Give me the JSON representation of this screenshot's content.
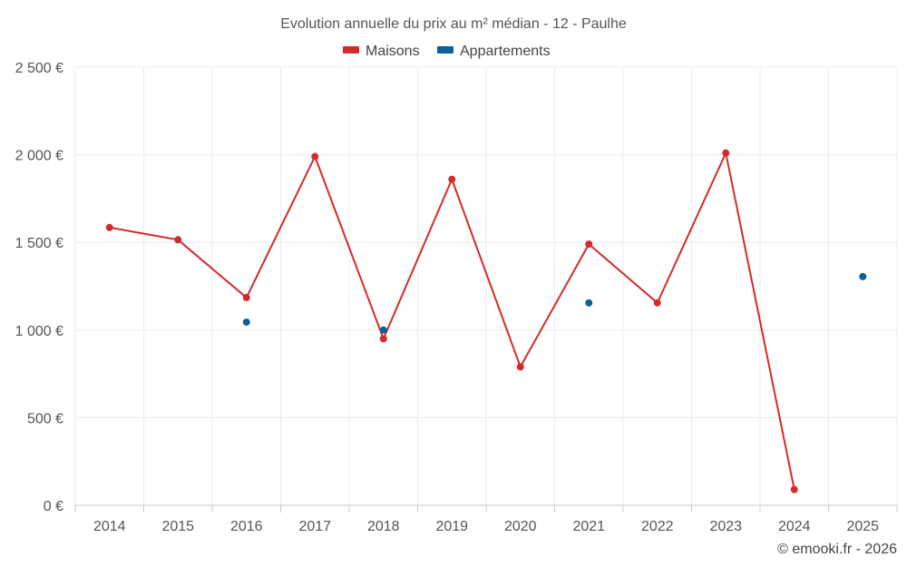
{
  "chart_data": {
    "type": "line",
    "title": "Evolution annuelle du prix au m² médian - 12 - Paulhe",
    "categories": [
      "2014",
      "2015",
      "2016",
      "2017",
      "2018",
      "2019",
      "2020",
      "2021",
      "2022",
      "2023",
      "2024",
      "2025"
    ],
    "ylim": [
      0,
      2500
    ],
    "yticks": [
      0,
      500,
      1000,
      1500,
      2000,
      2500
    ],
    "ytick_labels": [
      "0 €",
      "500 €",
      "1 000 €",
      "1 500 €",
      "2 000 €",
      "2 500 €"
    ],
    "xlabel": "",
    "ylabel": "",
    "grid": true,
    "legend_position": "top-center",
    "series": [
      {
        "name": "Maisons",
        "color": "#d42a2a",
        "line": true,
        "values": [
          1585,
          1515,
          1185,
          1990,
          950,
          1860,
          790,
          1490,
          1155,
          2010,
          90,
          null
        ]
      },
      {
        "name": "Appartements",
        "color": "#0b5f9c",
        "line": false,
        "values": [
          null,
          null,
          1045,
          null,
          1000,
          null,
          null,
          1155,
          null,
          null,
          null,
          1305
        ]
      }
    ]
  },
  "credit": "© emooki.fr - 2026"
}
